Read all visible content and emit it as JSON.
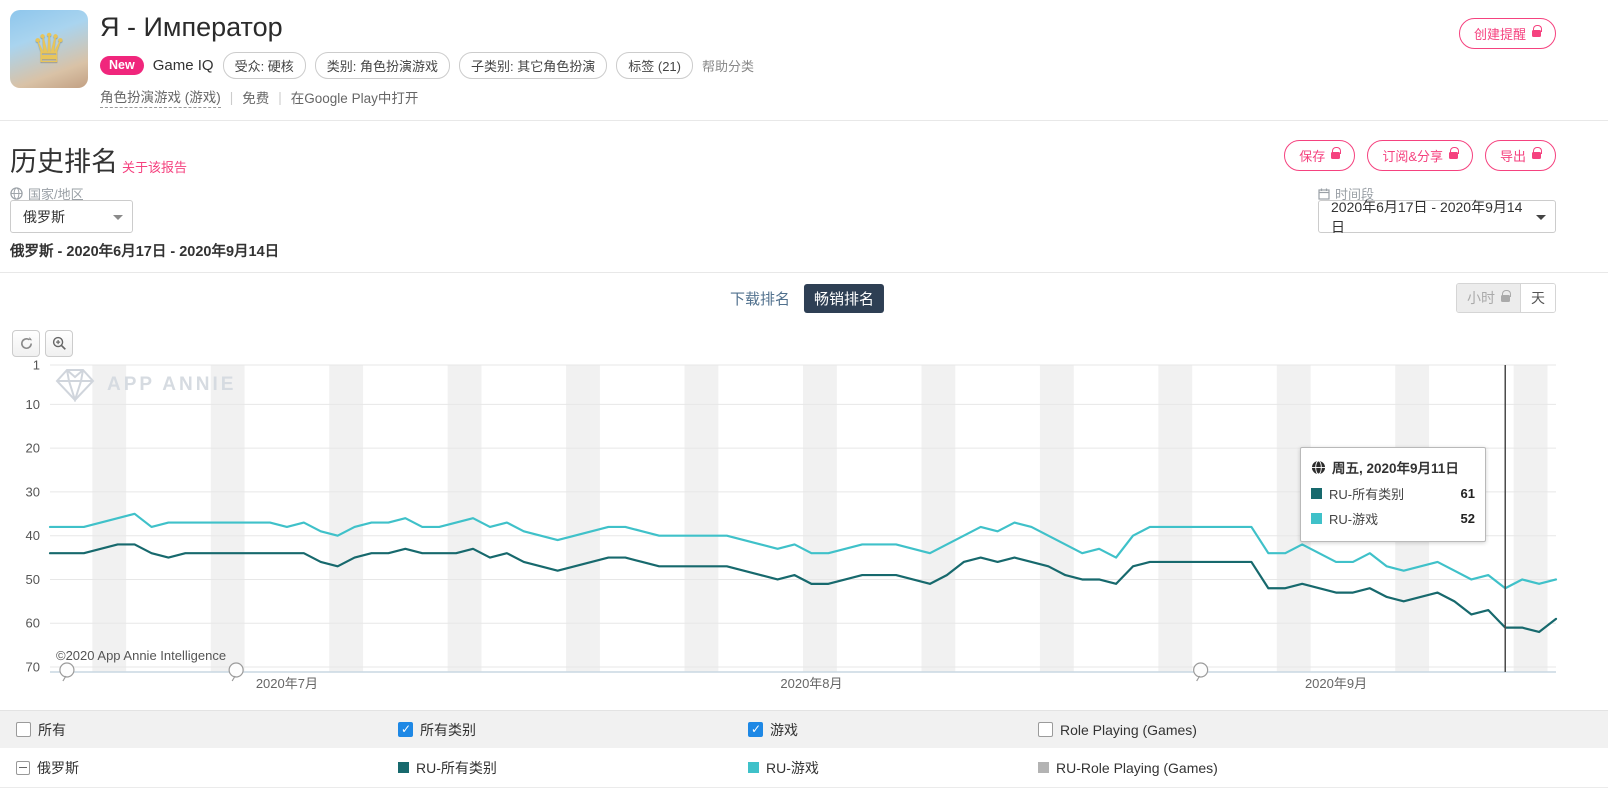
{
  "app_header": {
    "title": "Я - Император",
    "new_badge": "New",
    "game_iq": "Game IQ",
    "pills": [
      "受众: 硬核",
      "类别: 角色扮演游戏",
      "子类别: 其它角色扮演",
      "标签 (21)"
    ],
    "help_classify": "帮助分类",
    "category_link": "角色扮演游戏 (游戏)",
    "price": "免费",
    "open_in_store": "在Google Play中打开",
    "create_alert": "创建提醒"
  },
  "report": {
    "title": "历史排名",
    "about_link": "关于该报告",
    "save": "保存",
    "subscribe_share": "订阅&分享",
    "export": "导出",
    "country_label": "国家/地区",
    "country_value": "俄罗斯",
    "period_label": "时间段",
    "period_value": "2020年6月17日 - 2020年9月14日",
    "subtitle": "俄罗斯 - 2020年6月17日 - 2020年9月14日"
  },
  "tabs": {
    "download": "下载排名",
    "grossing": "畅销排名",
    "hour": "小时",
    "day": "天"
  },
  "chart_meta": {
    "watermark": "APP ANNIE",
    "copyright": "©2020 App Annie Intelligence",
    "tooltip": {
      "date": "周五, 2020年9月11日",
      "values": [
        "61",
        "52"
      ]
    }
  },
  "chart_data": {
    "type": "line",
    "title": "历史排名 - 畅销排名 (Google Play, 俄罗斯)",
    "x_start_date": "2020-06-17",
    "x_end_date": "2020-09-14",
    "x_ticks": [
      {
        "day_index": 14,
        "label": "2020年7月"
      },
      {
        "day_index": 45,
        "label": "2020年8月"
      },
      {
        "day_index": 76,
        "label": "2020年9月"
      }
    ],
    "y_ticks": [
      1,
      10,
      20,
      30,
      40,
      50,
      60,
      70
    ],
    "ylim": [
      1,
      70
    ],
    "y_axis_inverted": true,
    "weekend_shading": true,
    "series": [
      {
        "name": "RU-所有类别",
        "color": "#17696d",
        "values": [
          44,
          44,
          44,
          43,
          42,
          42,
          44,
          45,
          44,
          44,
          44,
          44,
          44,
          44,
          44,
          44,
          46,
          47,
          45,
          44,
          44,
          43,
          44,
          44,
          44,
          43,
          45,
          44,
          46,
          47,
          48,
          47,
          46,
          45,
          45,
          46,
          47,
          47,
          47,
          47,
          47,
          48,
          49,
          50,
          49,
          51,
          51,
          50,
          49,
          49,
          49,
          50,
          51,
          49,
          46,
          45,
          46,
          45,
          46,
          47,
          49,
          50,
          50,
          51,
          47,
          46,
          46,
          46,
          46,
          46,
          46,
          46,
          52,
          52,
          51,
          52,
          53,
          53,
          52,
          54,
          55,
          54,
          53,
          55,
          58,
          57,
          61,
          61,
          62,
          59
        ]
      },
      {
        "name": "RU-游戏",
        "color": "#3fc1c9",
        "values": [
          38,
          38,
          38,
          37,
          36,
          35,
          38,
          37,
          37,
          37,
          37,
          37,
          37,
          37,
          38,
          37,
          39,
          40,
          38,
          37,
          37,
          36,
          38,
          38,
          37,
          36,
          38,
          37,
          39,
          40,
          41,
          40,
          39,
          38,
          38,
          39,
          40,
          40,
          40,
          40,
          40,
          41,
          42,
          43,
          42,
          44,
          44,
          43,
          42,
          42,
          42,
          43,
          44,
          42,
          40,
          38,
          39,
          37,
          38,
          40,
          42,
          44,
          43,
          45,
          40,
          38,
          38,
          38,
          38,
          38,
          38,
          38,
          44,
          44,
          42,
          44,
          46,
          46,
          44,
          47,
          48,
          47,
          46,
          48,
          50,
          49,
          52,
          50,
          51,
          50
        ]
      }
    ],
    "highlight": {
      "day_index": 86,
      "date_label": "周五, 2020年9月11日",
      "values": [
        61,
        52
      ]
    },
    "event_marker_day_indices": [
      1,
      11,
      68
    ]
  },
  "legend": {
    "header": [
      {
        "label": "所有",
        "checked": false
      },
      {
        "label": "所有类别",
        "checked": true
      },
      {
        "label": "游戏",
        "checked": true
      },
      {
        "label": "Role Playing (Games)",
        "checked": false
      }
    ],
    "row": {
      "country": "俄罗斯",
      "items": [
        {
          "label": "RU-所有类别",
          "color": "#17696d"
        },
        {
          "label": "RU-游戏",
          "color": "#3fc1c9"
        },
        {
          "label": "RU-Role Playing (Games)",
          "color": "#b3b3b3"
        }
      ]
    }
  },
  "colors": {
    "accent_pink": "#f5427f",
    "tab_active_bg": "#2e3f54",
    "checkbox_blue": "#1e88e5",
    "weekend_band": "#f1f1f1",
    "gridline": "#e7e7e7",
    "axis_line": "#c9d7e2",
    "crosshair": "#4a4a4a"
  }
}
